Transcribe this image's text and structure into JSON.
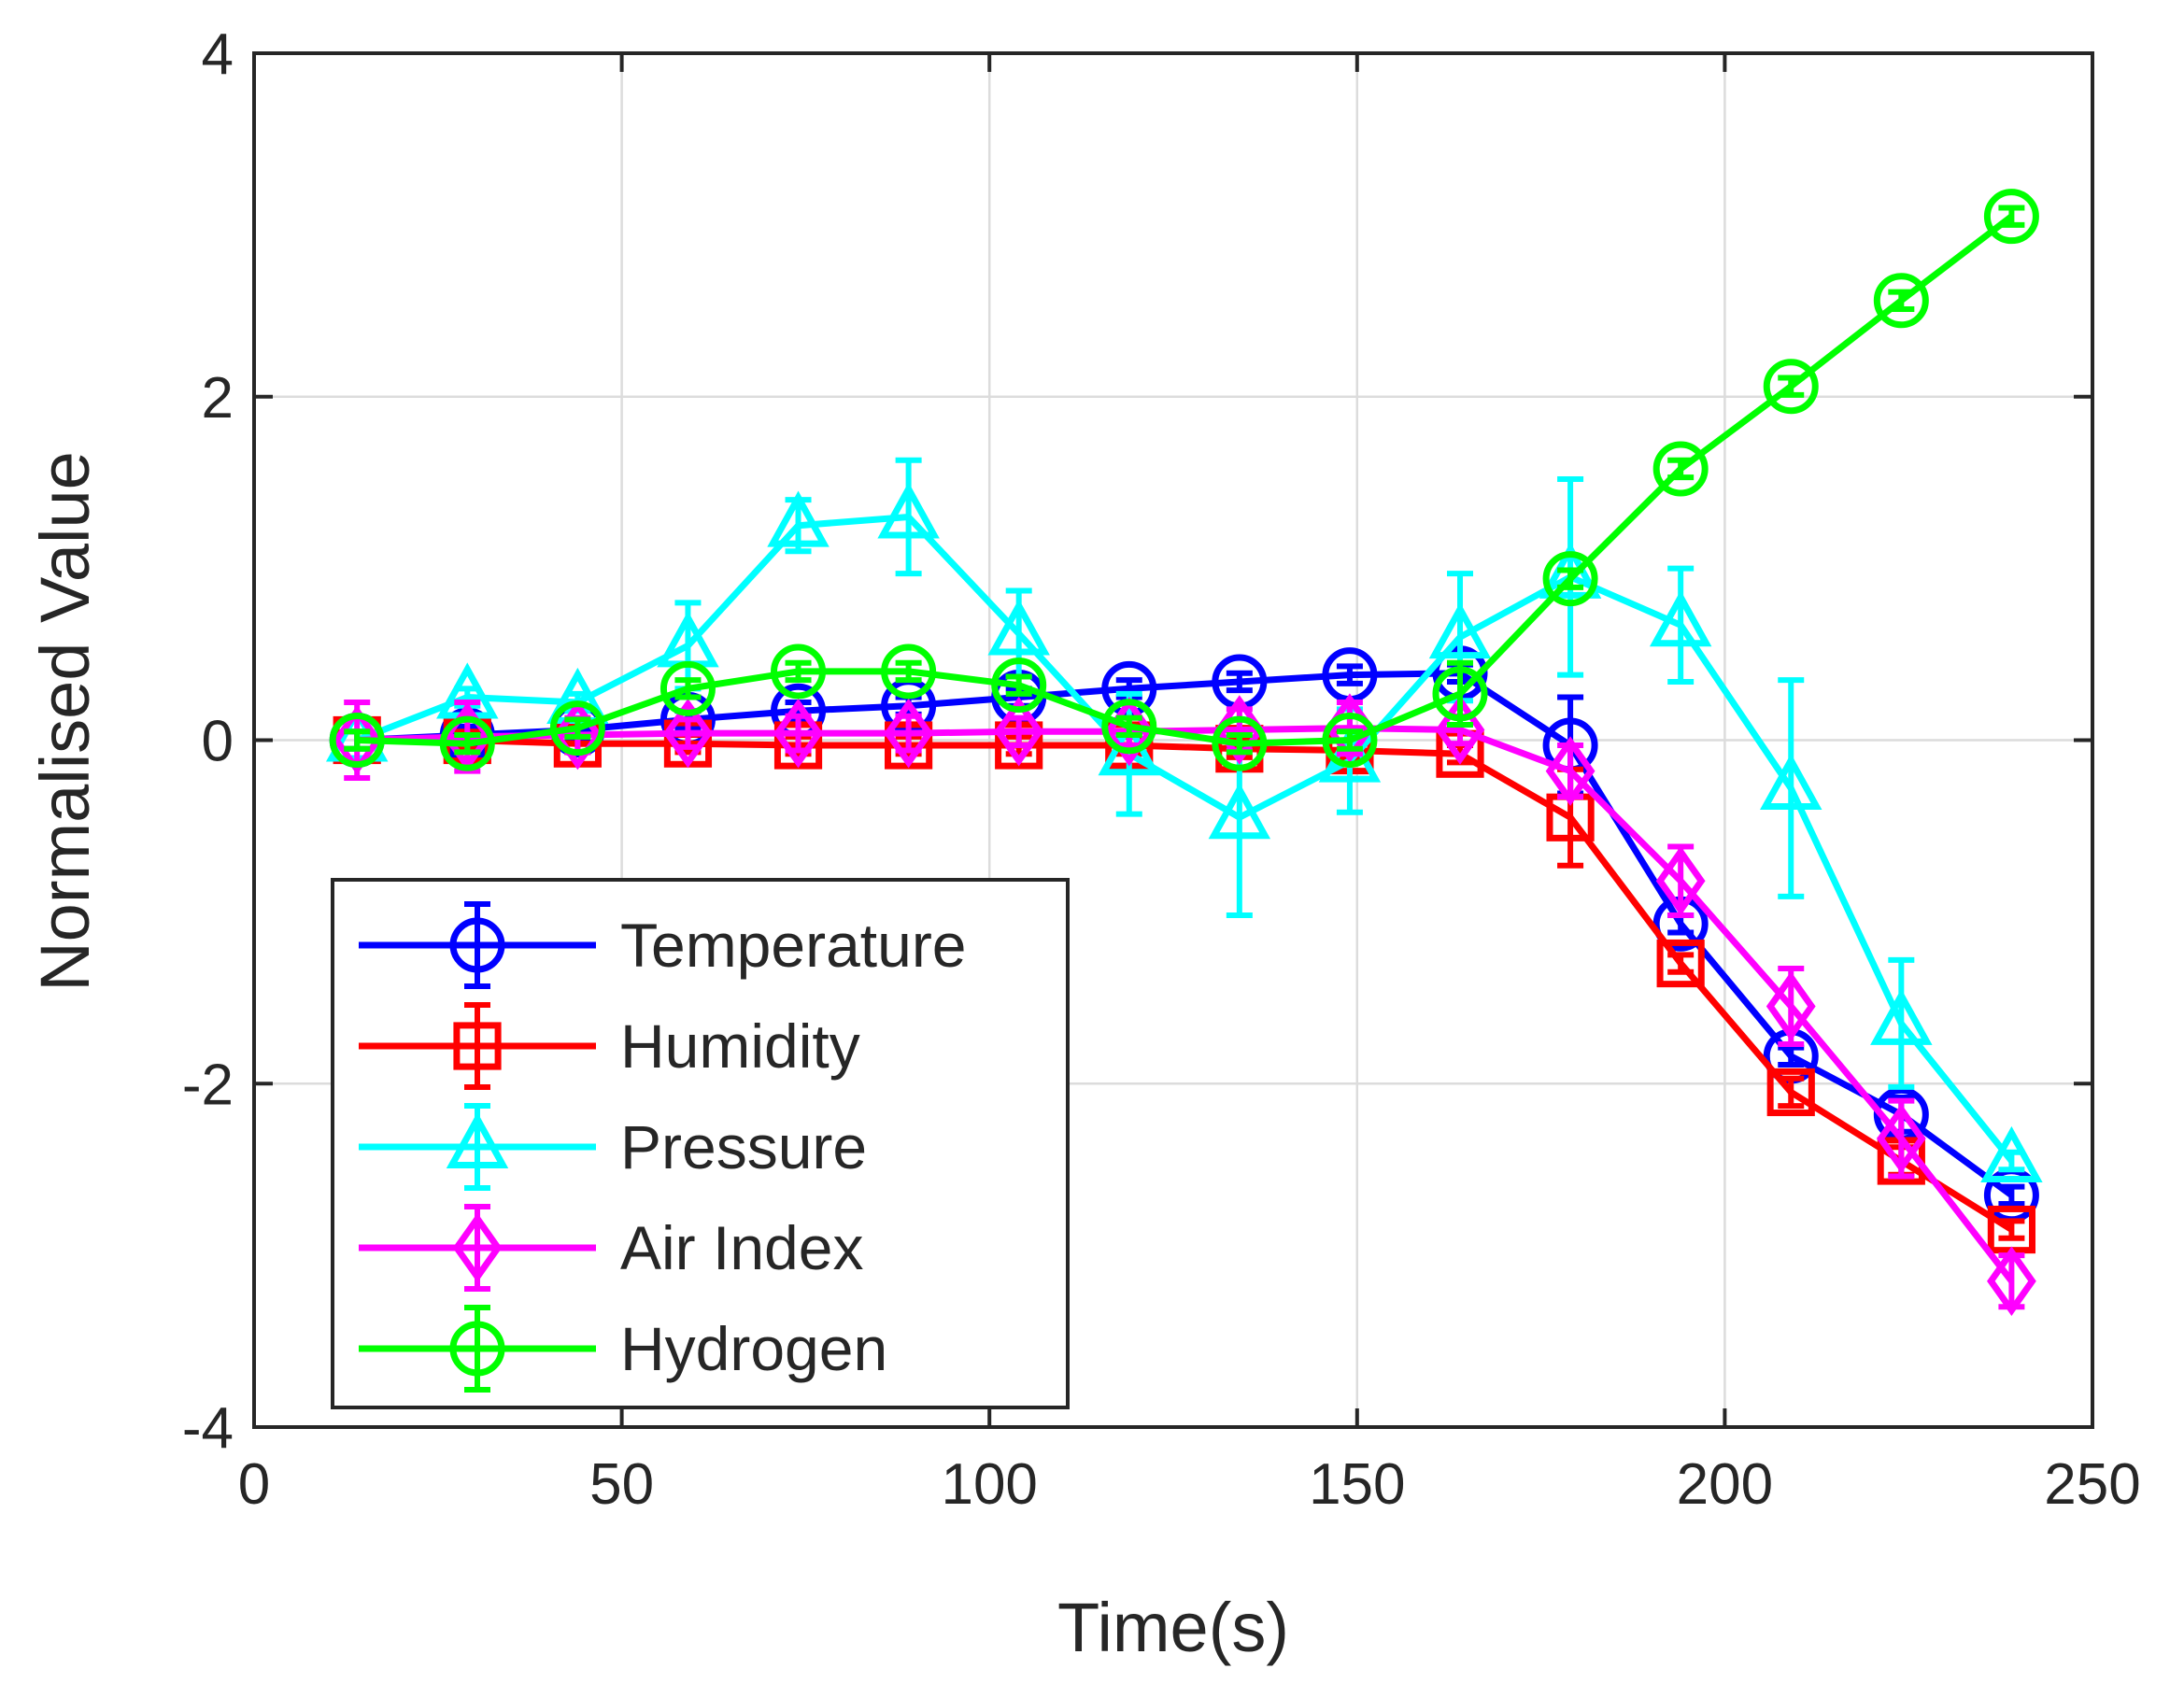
{
  "chart_data": {
    "type": "line",
    "title": "",
    "xlabel": "Time(s)",
    "ylabel": "Normalised Value",
    "xlim": [
      0,
      250
    ],
    "ylim": [
      -4,
      4
    ],
    "xticks": [
      0,
      50,
      100,
      150,
      200,
      250
    ],
    "yticks": [
      -4,
      -2,
      0,
      2,
      4
    ],
    "xtick_labels": [
      "0",
      "50",
      "100",
      "150",
      "200",
      "250"
    ],
    "ytick_labels": [
      "-4",
      "-2",
      "0",
      "2",
      "4"
    ],
    "grid": true,
    "legend_position": "bottom-left",
    "x": [
      14,
      29,
      44,
      59,
      74,
      89,
      104,
      119,
      134,
      149,
      164,
      179,
      194,
      209,
      224,
      239
    ],
    "series": [
      {
        "name": "Temperature",
        "color": "#0000ff",
        "marker": "circle",
        "values": [
          0.0,
          0.03,
          0.06,
          0.12,
          0.17,
          0.2,
          0.25,
          0.3,
          0.34,
          0.38,
          0.39,
          -0.03,
          -1.07,
          -1.84,
          -2.18,
          -2.65
        ],
        "errors": [
          0.05,
          0.05,
          0.05,
          0.05,
          0.05,
          0.05,
          0.05,
          0.05,
          0.05,
          0.05,
          0.05,
          0.28,
          0.05,
          0.05,
          0.1,
          0.05
        ]
      },
      {
        "name": "Humidity",
        "color": "#ff0000",
        "marker": "square",
        "values": [
          0.0,
          0.0,
          -0.02,
          -0.02,
          -0.03,
          -0.03,
          -0.03,
          -0.03,
          -0.05,
          -0.06,
          -0.08,
          -0.45,
          -1.3,
          -2.05,
          -2.45,
          -2.85
        ],
        "errors": [
          0.05,
          0.05,
          0.05,
          0.05,
          0.05,
          0.05,
          0.05,
          0.05,
          0.05,
          0.05,
          0.05,
          0.28,
          0.05,
          0.08,
          0.08,
          0.05
        ]
      },
      {
        "name": "Pressure",
        "color": "#00ffff",
        "marker": "triangle",
        "values": [
          0.0,
          0.25,
          0.22,
          0.55,
          1.25,
          1.3,
          0.62,
          -0.08,
          -0.45,
          -0.12,
          0.6,
          0.95,
          0.67,
          -0.28,
          -1.65,
          -2.45
        ],
        "errors": [
          0.05,
          0.05,
          0.05,
          0.25,
          0.15,
          0.33,
          0.25,
          0.35,
          0.57,
          0.3,
          0.37,
          0.57,
          0.33,
          0.63,
          0.37,
          0.05
        ]
      },
      {
        "name": "Air Index",
        "color": "#ff00ff",
        "marker": "diamond",
        "values": [
          0.0,
          0.02,
          0.03,
          0.04,
          0.04,
          0.04,
          0.05,
          0.05,
          0.06,
          0.07,
          0.06,
          -0.18,
          -0.82,
          -1.55,
          -2.32,
          -3.15
        ],
        "errors": [
          0.22,
          0.2,
          0.1,
          0.08,
          0.1,
          0.1,
          0.08,
          0.08,
          0.12,
          0.15,
          0.08,
          0.15,
          0.2,
          0.22,
          0.22,
          0.15
        ]
      },
      {
        "name": "Hydrogen",
        "color": "#00ff00",
        "marker": "circle",
        "values": [
          0.0,
          -0.02,
          0.07,
          0.3,
          0.4,
          0.4,
          0.32,
          0.08,
          -0.02,
          0.0,
          0.27,
          0.94,
          1.58,
          2.06,
          2.56,
          3.05
        ],
        "errors": [
          0.05,
          0.05,
          0.05,
          0.05,
          0.05,
          0.05,
          0.05,
          0.05,
          0.05,
          0.05,
          0.18,
          0.05,
          0.05,
          0.05,
          0.05,
          0.05
        ]
      }
    ]
  }
}
